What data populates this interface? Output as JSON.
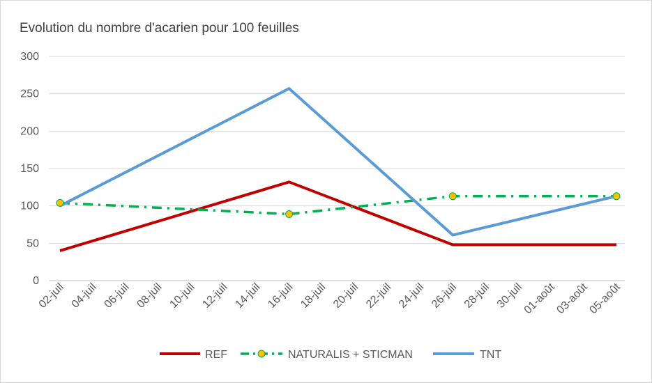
{
  "chart_data": {
    "type": "line",
    "title": "Evolution du nombre d'acarien pour 100 feuilles",
    "xlabel": "",
    "ylabel": "",
    "ylim": [
      0,
      300
    ],
    "yticks": [
      0,
      50,
      100,
      150,
      200,
      250,
      300
    ],
    "grid": true,
    "legend_position": "bottom",
    "x": [
      "02-juil",
      "04-juil",
      "06-juil",
      "08-juil",
      "10-juil",
      "12-juil",
      "14-juil",
      "16-juil",
      "18-juil",
      "20-juil",
      "22-juil",
      "24-juil",
      "26-juil",
      "28-juil",
      "30-juil",
      "01-août",
      "03-août",
      "05-août"
    ],
    "series": [
      {
        "name": "REF",
        "color": "#c00000",
        "style": "solid",
        "marker": "none",
        "points": [
          {
            "x": "02-juil",
            "y": 40
          },
          {
            "x": "16-juil",
            "y": 132
          },
          {
            "x": "26-juil",
            "y": 48
          },
          {
            "x": "05-août",
            "y": 48
          }
        ]
      },
      {
        "name": "NATURALIS + STICMAN",
        "color": "#00b050",
        "marker_color": "#ffc000",
        "style": "dashdot",
        "marker": "circle",
        "points": [
          {
            "x": "02-juil",
            "y": 104
          },
          {
            "x": "16-juil",
            "y": 89
          },
          {
            "x": "26-juil",
            "y": 113
          },
          {
            "x": "05-août",
            "y": 113
          }
        ]
      },
      {
        "name": "TNT",
        "color": "#5b9bd5",
        "style": "solid",
        "marker": "none",
        "points": [
          {
            "x": "02-juil",
            "y": 100
          },
          {
            "x": "16-juil",
            "y": 257
          },
          {
            "x": "26-juil",
            "y": 61
          },
          {
            "x": "05-août",
            "y": 113
          }
        ]
      }
    ]
  }
}
